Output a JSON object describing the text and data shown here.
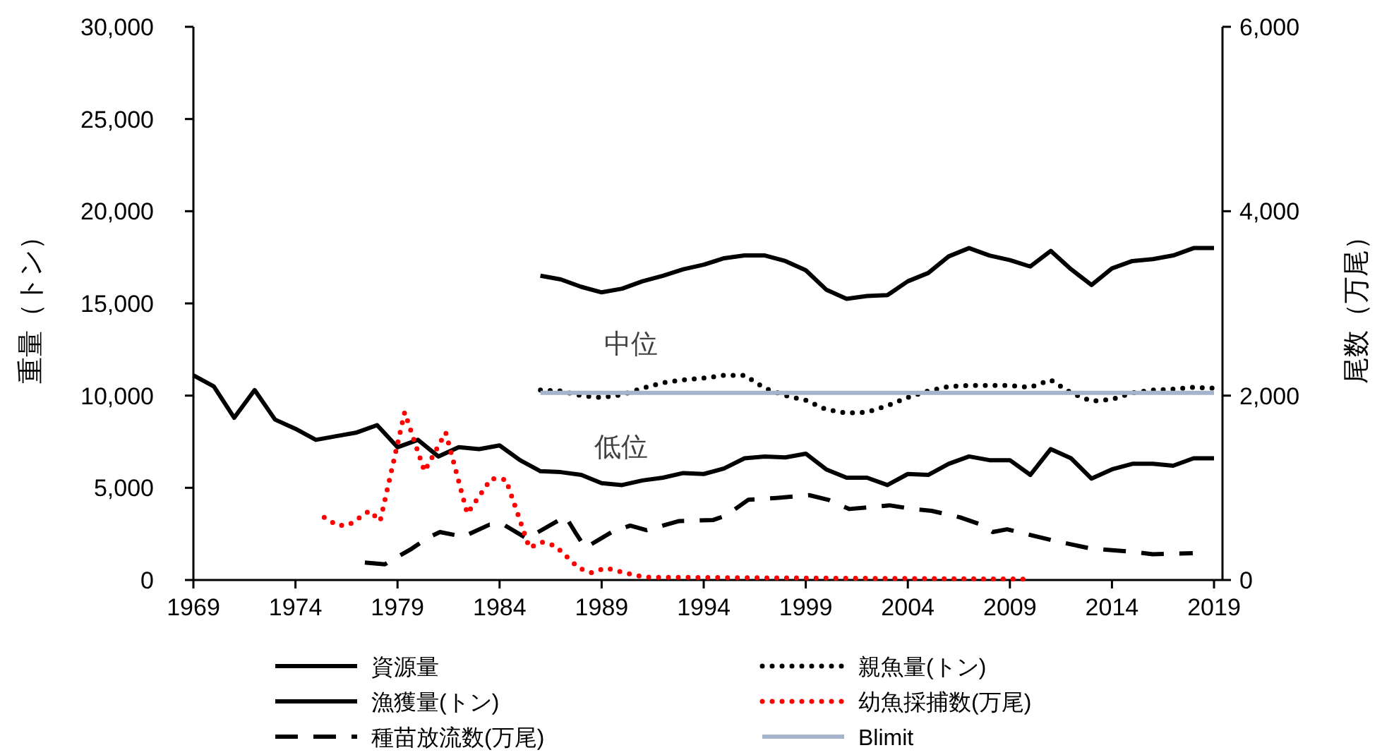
{
  "chart_data": {
    "type": "line",
    "ylabel": "重量（トン）",
    "y2label": "尾数（万尾）",
    "legend": "bottom",
    "xlim": [
      1969,
      2019
    ],
    "xticks": [
      1969,
      1974,
      1979,
      1984,
      1989,
      1994,
      1999,
      2004,
      2009,
      2014,
      2019
    ],
    "ylim": [
      0,
      30000
    ],
    "yticks": [
      {
        "value": 0,
        "label": "0"
      },
      {
        "value": 5000,
        "label": "5,000"
      },
      {
        "value": 10000,
        "label": "10,000"
      },
      {
        "value": 15000,
        "label": "15,000"
      },
      {
        "value": 20000,
        "label": "20,000"
      },
      {
        "value": 25000,
        "label": "25,000"
      },
      {
        "value": 30000,
        "label": "30,000"
      }
    ],
    "y2lim": [
      0,
      6000
    ],
    "y2ticks": [
      {
        "value": 0,
        "label": "0"
      },
      {
        "value": 2000,
        "label": "2,000"
      },
      {
        "value": 4000,
        "label": "4,000"
      },
      {
        "value": 6000,
        "label": "6,000"
      }
    ],
    "annotations": [
      "中位",
      "低位"
    ],
    "series": [
      {
        "name": "資源量",
        "color": "#000000",
        "line_style": "solid",
        "x": [
          1986,
          1987,
          1988,
          1989,
          1990,
          1991,
          1992,
          1993,
          1994,
          1995,
          1996,
          1997,
          1998,
          1999,
          2000,
          2001,
          2002,
          2003,
          2004,
          2005,
          2006,
          2007,
          2008,
          2009,
          2010,
          2011,
          2012,
          2013,
          2014,
          2015,
          2016,
          2017,
          2018,
          2019
        ],
        "values": [
          16500,
          16300,
          15900,
          15600,
          15800,
          16200,
          16500,
          16850,
          17100,
          17450,
          17600,
          17600,
          17300,
          16800,
          15750,
          15250,
          15400,
          15450,
          16200,
          16650,
          17550,
          18000,
          17600,
          17350,
          17000,
          17850,
          16850,
          16000,
          16900,
          17300,
          17400,
          17600,
          18000,
          18000
        ]
      },
      {
        "name": "漁獲量(トン)",
        "color": "#000000",
        "line_style": "solid",
        "x": [
          1969,
          1970,
          1971,
          1972,
          1973,
          1974,
          1975,
          1976,
          1977,
          1978,
          1979,
          1980,
          1981,
          1982,
          1983,
          1984,
          1985,
          1986,
          1987,
          1988,
          1989,
          1990,
          1991,
          1992,
          1993,
          1994,
          1995,
          1996,
          1997,
          1998,
          1999,
          2000,
          2001,
          2002,
          2003,
          2004,
          2005,
          2006,
          2007,
          2008,
          2009,
          2010,
          2011,
          2012,
          2013,
          2014,
          2015,
          2016,
          2017,
          2018,
          2019
        ],
        "values": [
          11100,
          10500,
          8800,
          10300,
          8700,
          8200,
          7600,
          7800,
          8000,
          8400,
          7200,
          7600,
          6700,
          7200,
          7100,
          7300,
          6500,
          5900,
          5850,
          5700,
          5250,
          5150,
          5400,
          5550,
          5800,
          5750,
          6050,
          6600,
          6700,
          6650,
          6850,
          6000,
          5550,
          5550,
          5150,
          5750,
          5700,
          6300,
          6700,
          6500,
          6500,
          5700,
          7100,
          6600,
          5500,
          6000,
          6300,
          6300,
          6200,
          6600,
          6600
        ]
      },
      {
        "name": "種苗放流数(万尾)",
        "color": "#000000",
        "line_style": "dashed",
        "axis": "y2",
        "x": [
          1977.4,
          1978.38,
          1979.7,
          1980.5,
          1981.08,
          1982.23,
          1983.5,
          1984.2,
          1985.34,
          1987.23,
          1987.7,
          1988.2,
          1989.5,
          1990.4,
          1991.2,
          1992.8,
          1994.45,
          1995.1,
          1996.18,
          1997.56,
          1999.17,
          2000.1,
          2001.14,
          2003.1,
          2004.25,
          2005.17,
          2006.55,
          2007.59,
          2008.16,
          2008.86,
          2009.78,
          2011.28,
          2013.0,
          2014.85,
          2016.0,
          2017.96
        ],
        "values": [
          190,
          170,
          340,
          460,
          520,
          470,
          600,
          600,
          450,
          690,
          520,
          350,
          520,
          590,
          540,
          640,
          650,
          700,
          870,
          890,
          920,
          870,
          770,
          810,
          770,
          750,
          680,
          600,
          520,
          550,
          500,
          420,
          340,
          310,
          280,
          290
        ]
      },
      {
        "name": "親魚量(トン)",
        "color": "#000000",
        "line_style": "dotted",
        "x": [
          1986,
          1987,
          1988,
          1989,
          1990,
          1991,
          1992,
          1993,
          1994,
          1995,
          1996,
          1997,
          1998,
          1999,
          2000,
          2001,
          2002,
          2003,
          2004,
          2005,
          2006,
          2007,
          2008,
          2009,
          2010,
          2011,
          2012,
          2013,
          2014,
          2015,
          2016,
          2017,
          2018,
          2019
        ],
        "values": [
          10300,
          10250,
          10000,
          9900,
          10050,
          10400,
          10700,
          10850,
          10950,
          11100,
          11100,
          10400,
          10000,
          9750,
          9250,
          9050,
          9100,
          9450,
          9900,
          10250,
          10500,
          10550,
          10550,
          10550,
          10450,
          10850,
          10150,
          9700,
          9800,
          10150,
          10300,
          10350,
          10450,
          10400
        ]
      },
      {
        "name": "幼魚採捕数(万尾)",
        "color": "#ff0000",
        "line_style": "dotted",
        "axis": "y2",
        "x": [
          1975.41,
          1976.08,
          1976.63,
          1977.62,
          1978.15,
          1979.35,
          1980.32,
          1981.36,
          1982.42,
          1983.59,
          1984.31,
          1985.46,
          1986.1,
          1986.73,
          1987.88,
          1988.48,
          1989.21,
          1990.65,
          1991.3,
          2009.78
        ],
        "values": [
          680,
          590,
          600,
          750,
          640,
          1820,
          1180,
          1600,
          720,
          1100,
          1090,
          350,
          410,
          370,
          130,
          80,
          130,
          50,
          30,
          10
        ]
      },
      {
        "name": "Blimit",
        "color": "#a4b4cc",
        "line_style": "solid",
        "x": [
          1986,
          2019
        ],
        "values": [
          10150,
          10150
        ]
      }
    ]
  }
}
